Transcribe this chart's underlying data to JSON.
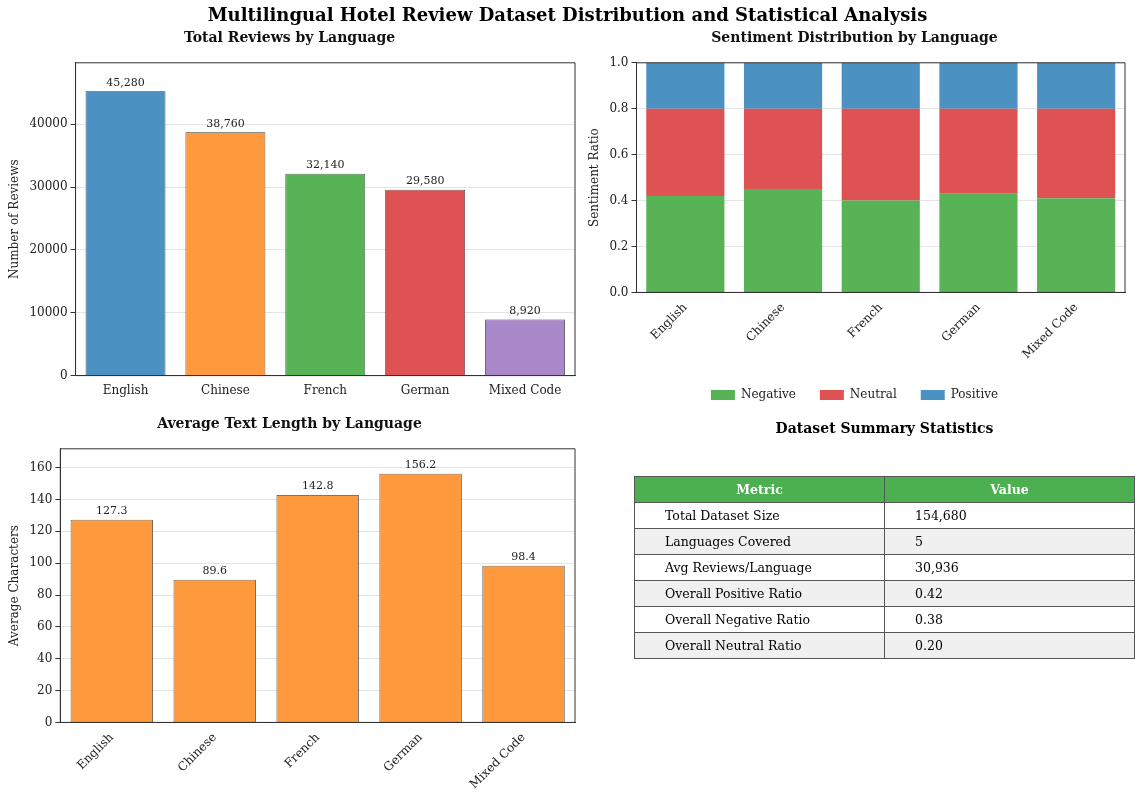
{
  "chart_data": [
    {
      "type": "other",
      "title": "Multilingual Hotel Review Dataset Distribution and Statistical Analysis"
    },
    {
      "type": "bar",
      "title": "Total Reviews by Language",
      "ylabel": "Number of Reviews",
      "categories": [
        "English",
        "Chinese",
        "French",
        "German",
        "Mixed Code"
      ],
      "values": [
        45280,
        38760,
        32140,
        29580,
        8920
      ],
      "colors": [
        "#4b92c3",
        "#ff993e",
        "#57b356",
        "#de5253",
        "#a987c9"
      ],
      "value_labels": [
        "45,280",
        "38,760",
        "32,140",
        "29,580",
        "8,920"
      ],
      "ylim": [
        0,
        49800
      ],
      "yticks": [
        0,
        10000,
        20000,
        30000,
        40000
      ],
      "grid": "y",
      "legend": false
    },
    {
      "type": "bar",
      "title": "Sentiment Distribution by Language",
      "ylabel": "Sentiment Ratio",
      "categories": [
        "English",
        "Chinese",
        "French",
        "German",
        "Mixed Code"
      ],
      "stacked": true,
      "series": [
        {
          "name": "Negative",
          "color": "#57b356",
          "values": [
            0.42,
            0.45,
            0.4,
            0.43,
            0.41
          ]
        },
        {
          "name": "Neutral",
          "color": "#de5253",
          "values": [
            0.38,
            0.35,
            0.4,
            0.37,
            0.39
          ]
        },
        {
          "name": "Positive",
          "color": "#4b92c3",
          "values": [
            0.2,
            0.2,
            0.2,
            0.2,
            0.2
          ]
        }
      ],
      "ylim": [
        0,
        1
      ],
      "yticks": [
        {
          "value": 0,
          "label": "0.0"
        },
        {
          "value": 0.2,
          "label": "0.2"
        },
        {
          "value": 0.4,
          "label": "0.4"
        },
        {
          "value": 0.6,
          "label": "0.6"
        },
        {
          "value": 0.8,
          "label": "0.8"
        },
        {
          "value": 1,
          "label": "1.0"
        }
      ],
      "grid": "y",
      "legend": "bottom"
    },
    {
      "type": "bar",
      "title": "Average Text Length by Language",
      "ylabel": "Average Characters",
      "categories": [
        "English",
        "Chinese",
        "French",
        "German",
        "Mixed Code"
      ],
      "values": [
        127.3,
        89.6,
        142.8,
        156.2,
        98.4
      ],
      "color": "#ff993e",
      "data_labels": true,
      "ylim": [
        0,
        171.8
      ],
      "yticks": [
        0,
        20,
        40,
        60,
        80,
        100,
        120,
        140,
        160
      ],
      "grid": "y",
      "legend": false
    },
    {
      "type": "other",
      "title": "Dataset Summary Statistics",
      "annotations": [
        "Metric",
        "Value"
      ],
      "categories": [
        "Total Dataset Size",
        "Languages Covered",
        "Avg Reviews/Language",
        "Overall Positive Ratio",
        "Overall Negative Ratio",
        "Overall Neutral Ratio"
      ],
      "value_labels": [
        "154,680",
        "5",
        "30,936",
        "0.42",
        "0.38",
        "0.20"
      ]
    }
  ]
}
